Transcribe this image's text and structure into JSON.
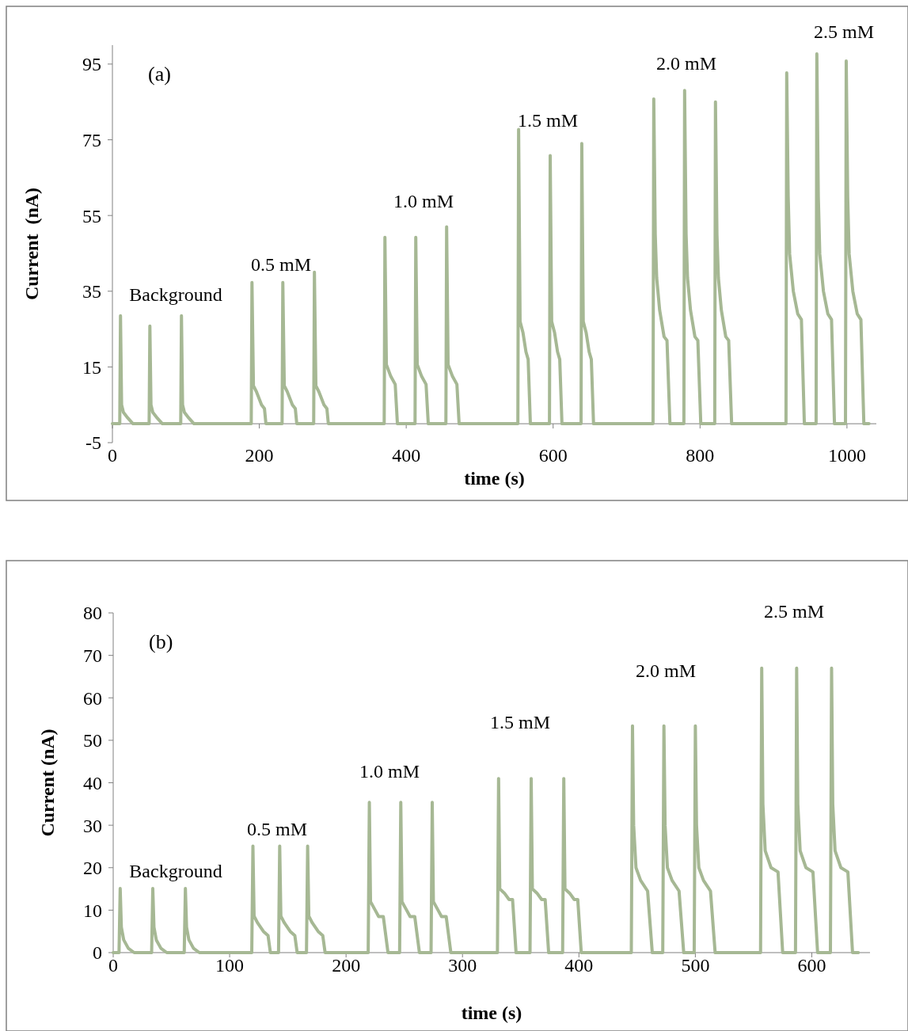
{
  "chart_data": [
    {
      "type": "line",
      "title": "(a)",
      "xlabel": "time (s)",
      "ylabel": "Current  (nA)",
      "xlim": [
        0,
        1040
      ],
      "ylim": [
        -5,
        100
      ],
      "xticks": [
        0,
        200,
        400,
        600,
        800,
        1000
      ],
      "yticks": [
        -5,
        15,
        35,
        55,
        75,
        95
      ],
      "grid": false,
      "marker": "none",
      "line_style": "solid",
      "annotations": [
        "Background",
        "0.5 mM",
        "1.0 mM",
        "1.5 mM",
        "2.0 mM",
        "2.5 mM"
      ],
      "series": [
        {
          "color": "#a6b894",
          "x": [
            0,
            10,
            11,
            12.5,
            15,
            21,
            28,
            50,
            51,
            52.5,
            55,
            61,
            68,
            93,
            94,
            95.5,
            98,
            104,
            111,
            189,
            190,
            192,
            196,
            203,
            207,
            209,
            231,
            232,
            234,
            238,
            245,
            249,
            251,
            274,
            275,
            277,
            281,
            288,
            292,
            294,
            370,
            371,
            373,
            379,
            385,
            388,
            412,
            413,
            415,
            421,
            427,
            430,
            454,
            455,
            457,
            463,
            469,
            472,
            552,
            553,
            555,
            559,
            563,
            566,
            569,
            595,
            596,
            598,
            602,
            606,
            609,
            612,
            638,
            639,
            641,
            645,
            649,
            652,
            655,
            736,
            737,
            739,
            741,
            745,
            751,
            755,
            759,
            778,
            779,
            781,
            783,
            787,
            793,
            797,
            801,
            820,
            821,
            823,
            825,
            829,
            835,
            839,
            843,
            917,
            918,
            920,
            922,
            927,
            933,
            938,
            942,
            958,
            959,
            961,
            963,
            968,
            974,
            979,
            983,
            998,
            999,
            1001,
            1003,
            1008,
            1014,
            1019,
            1023,
            1030
          ],
          "values": [
            0,
            0,
            28.5,
            5,
            3,
            1.5,
            0,
            0,
            25.8,
            5,
            3,
            1.5,
            0,
            0,
            28.5,
            5,
            3,
            1.5,
            0,
            0,
            37.3,
            10,
            8.5,
            5,
            4,
            0,
            0,
            37.3,
            10,
            8.5,
            5,
            4,
            0,
            0,
            40,
            10,
            8.5,
            5,
            4,
            0,
            0,
            49.2,
            15.6,
            12.5,
            10.4,
            0,
            0,
            49.2,
            15.6,
            12.5,
            10.4,
            0,
            0,
            52,
            15.6,
            12.5,
            10.4,
            0,
            0,
            77.7,
            27,
            24,
            19,
            17,
            0,
            0,
            70.8,
            27,
            24,
            19,
            17,
            0,
            0,
            74,
            27,
            24,
            19,
            17,
            0,
            0,
            85.8,
            50,
            38.5,
            30,
            23,
            22,
            0,
            0,
            88,
            50,
            38.5,
            30,
            23,
            22,
            0,
            0,
            85,
            50,
            38.5,
            30,
            23,
            22,
            0,
            0,
            92.7,
            60,
            44.8,
            35,
            29,
            27.5,
            0,
            0,
            97.7,
            60,
            44.8,
            35,
            29,
            27.5,
            0,
            0,
            95.8,
            60,
            44.8,
            35,
            29,
            27.5,
            0,
            0
          ]
        }
      ]
    },
    {
      "type": "line",
      "title": "(b)",
      "xlabel": "time (s)",
      "ylabel": "Current (nA)",
      "xlim": [
        0,
        650
      ],
      "ylim": [
        0,
        80
      ],
      "xticks": [
        0,
        100,
        200,
        300,
        400,
        500,
        600
      ],
      "yticks": [
        0,
        10,
        20,
        30,
        40,
        50,
        60,
        70,
        80
      ],
      "grid": false,
      "marker": "none",
      "line_style": "solid",
      "annotations": [
        "Background",
        "0.5 mM",
        "1.0 mM",
        "1.5 mM",
        "2.0 mM",
        "2.5 mM"
      ],
      "series": [
        {
          "color": "#a6b894",
          "x": [
            0,
            5,
            6,
            7,
            9,
            13,
            18,
            33,
            34,
            35,
            37,
            41,
            46,
            61,
            62,
            63,
            65,
            69,
            74,
            119,
            120,
            121,
            124,
            129,
            133,
            135,
            142,
            143,
            144,
            147,
            152,
            156,
            158,
            166,
            167,
            168,
            171,
            176,
            180,
            182,
            219,
            220,
            221,
            225,
            228,
            232,
            236,
            246,
            247,
            248,
            252,
            255,
            259,
            263,
            273,
            274,
            275,
            279,
            282,
            286,
            290,
            330,
            331,
            332,
            336,
            340,
            343,
            346,
            358,
            359,
            360,
            364,
            368,
            371,
            374,
            386,
            387,
            388,
            392,
            396,
            399,
            402,
            445,
            446,
            447,
            449,
            453,
            459,
            463,
            472,
            473,
            474,
            476,
            480,
            486,
            490,
            499,
            500,
            501,
            503,
            507,
            513,
            517,
            556,
            557,
            558,
            560,
            565,
            571,
            575,
            586,
            587,
            588,
            590,
            595,
            601,
            605,
            616,
            617,
            618,
            620,
            625,
            631,
            635,
            640
          ],
          "values": [
            0,
            0,
            15.1,
            6,
            3,
            1,
            0,
            0,
            15.1,
            6,
            3,
            1,
            0,
            0,
            15.1,
            6,
            3,
            1,
            0,
            0,
            25.1,
            8.6,
            7,
            5,
            4,
            0,
            0,
            25.1,
            8.6,
            7,
            5,
            4,
            0,
            0,
            25.1,
            8.6,
            7,
            5,
            4,
            0,
            0,
            35.4,
            12,
            10,
            8.5,
            8.5,
            0,
            0,
            35.4,
            12,
            10,
            8.5,
            8.5,
            0,
            0,
            35.4,
            12,
            10,
            8.5,
            8.5,
            0,
            0,
            41,
            15,
            14,
            12.5,
            12.5,
            0,
            0,
            41,
            15,
            14,
            12.5,
            12.5,
            0,
            0,
            41,
            15,
            14,
            12.5,
            12.5,
            0,
            0,
            53.4,
            30,
            20,
            17,
            14.5,
            0,
            0,
            53.4,
            30,
            20,
            17,
            14.5,
            0,
            0,
            53.4,
            30,
            20,
            17,
            14.5,
            0,
            0,
            67,
            35,
            24,
            20,
            19,
            0,
            0,
            67,
            35,
            24,
            20,
            19,
            0,
            0,
            67,
            35,
            24,
            20,
            19,
            0,
            0
          ]
        }
      ]
    }
  ]
}
